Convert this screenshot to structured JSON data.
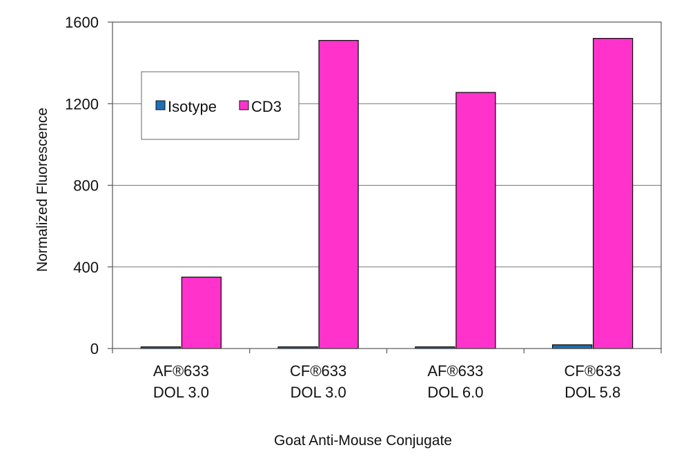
{
  "chart_data": {
    "type": "bar",
    "title": "",
    "xlabel": "Goat Anti-Mouse Conjugate",
    "ylabel": "Normalized Fluorescence",
    "categories": [
      [
        "AF®633",
        "DOL 3.0"
      ],
      [
        "CF®633",
        "DOL 3.0"
      ],
      [
        "AF®633",
        "DOL 6.0"
      ],
      [
        "CF®633",
        "DOL 5.8"
      ]
    ],
    "series": [
      {
        "name": "Isotype",
        "color": "#1f6fb4",
        "values": [
          8,
          8,
          8,
          18
        ]
      },
      {
        "name": "CD3",
        "color": "#ff33cc",
        "values": [
          350,
          1510,
          1255,
          1520
        ]
      }
    ],
    "ylim": [
      0,
      1600
    ],
    "yticks": [
      0,
      400,
      800,
      1200,
      1600
    ],
    "grid": true,
    "legend_position": "upper-left inside"
  }
}
